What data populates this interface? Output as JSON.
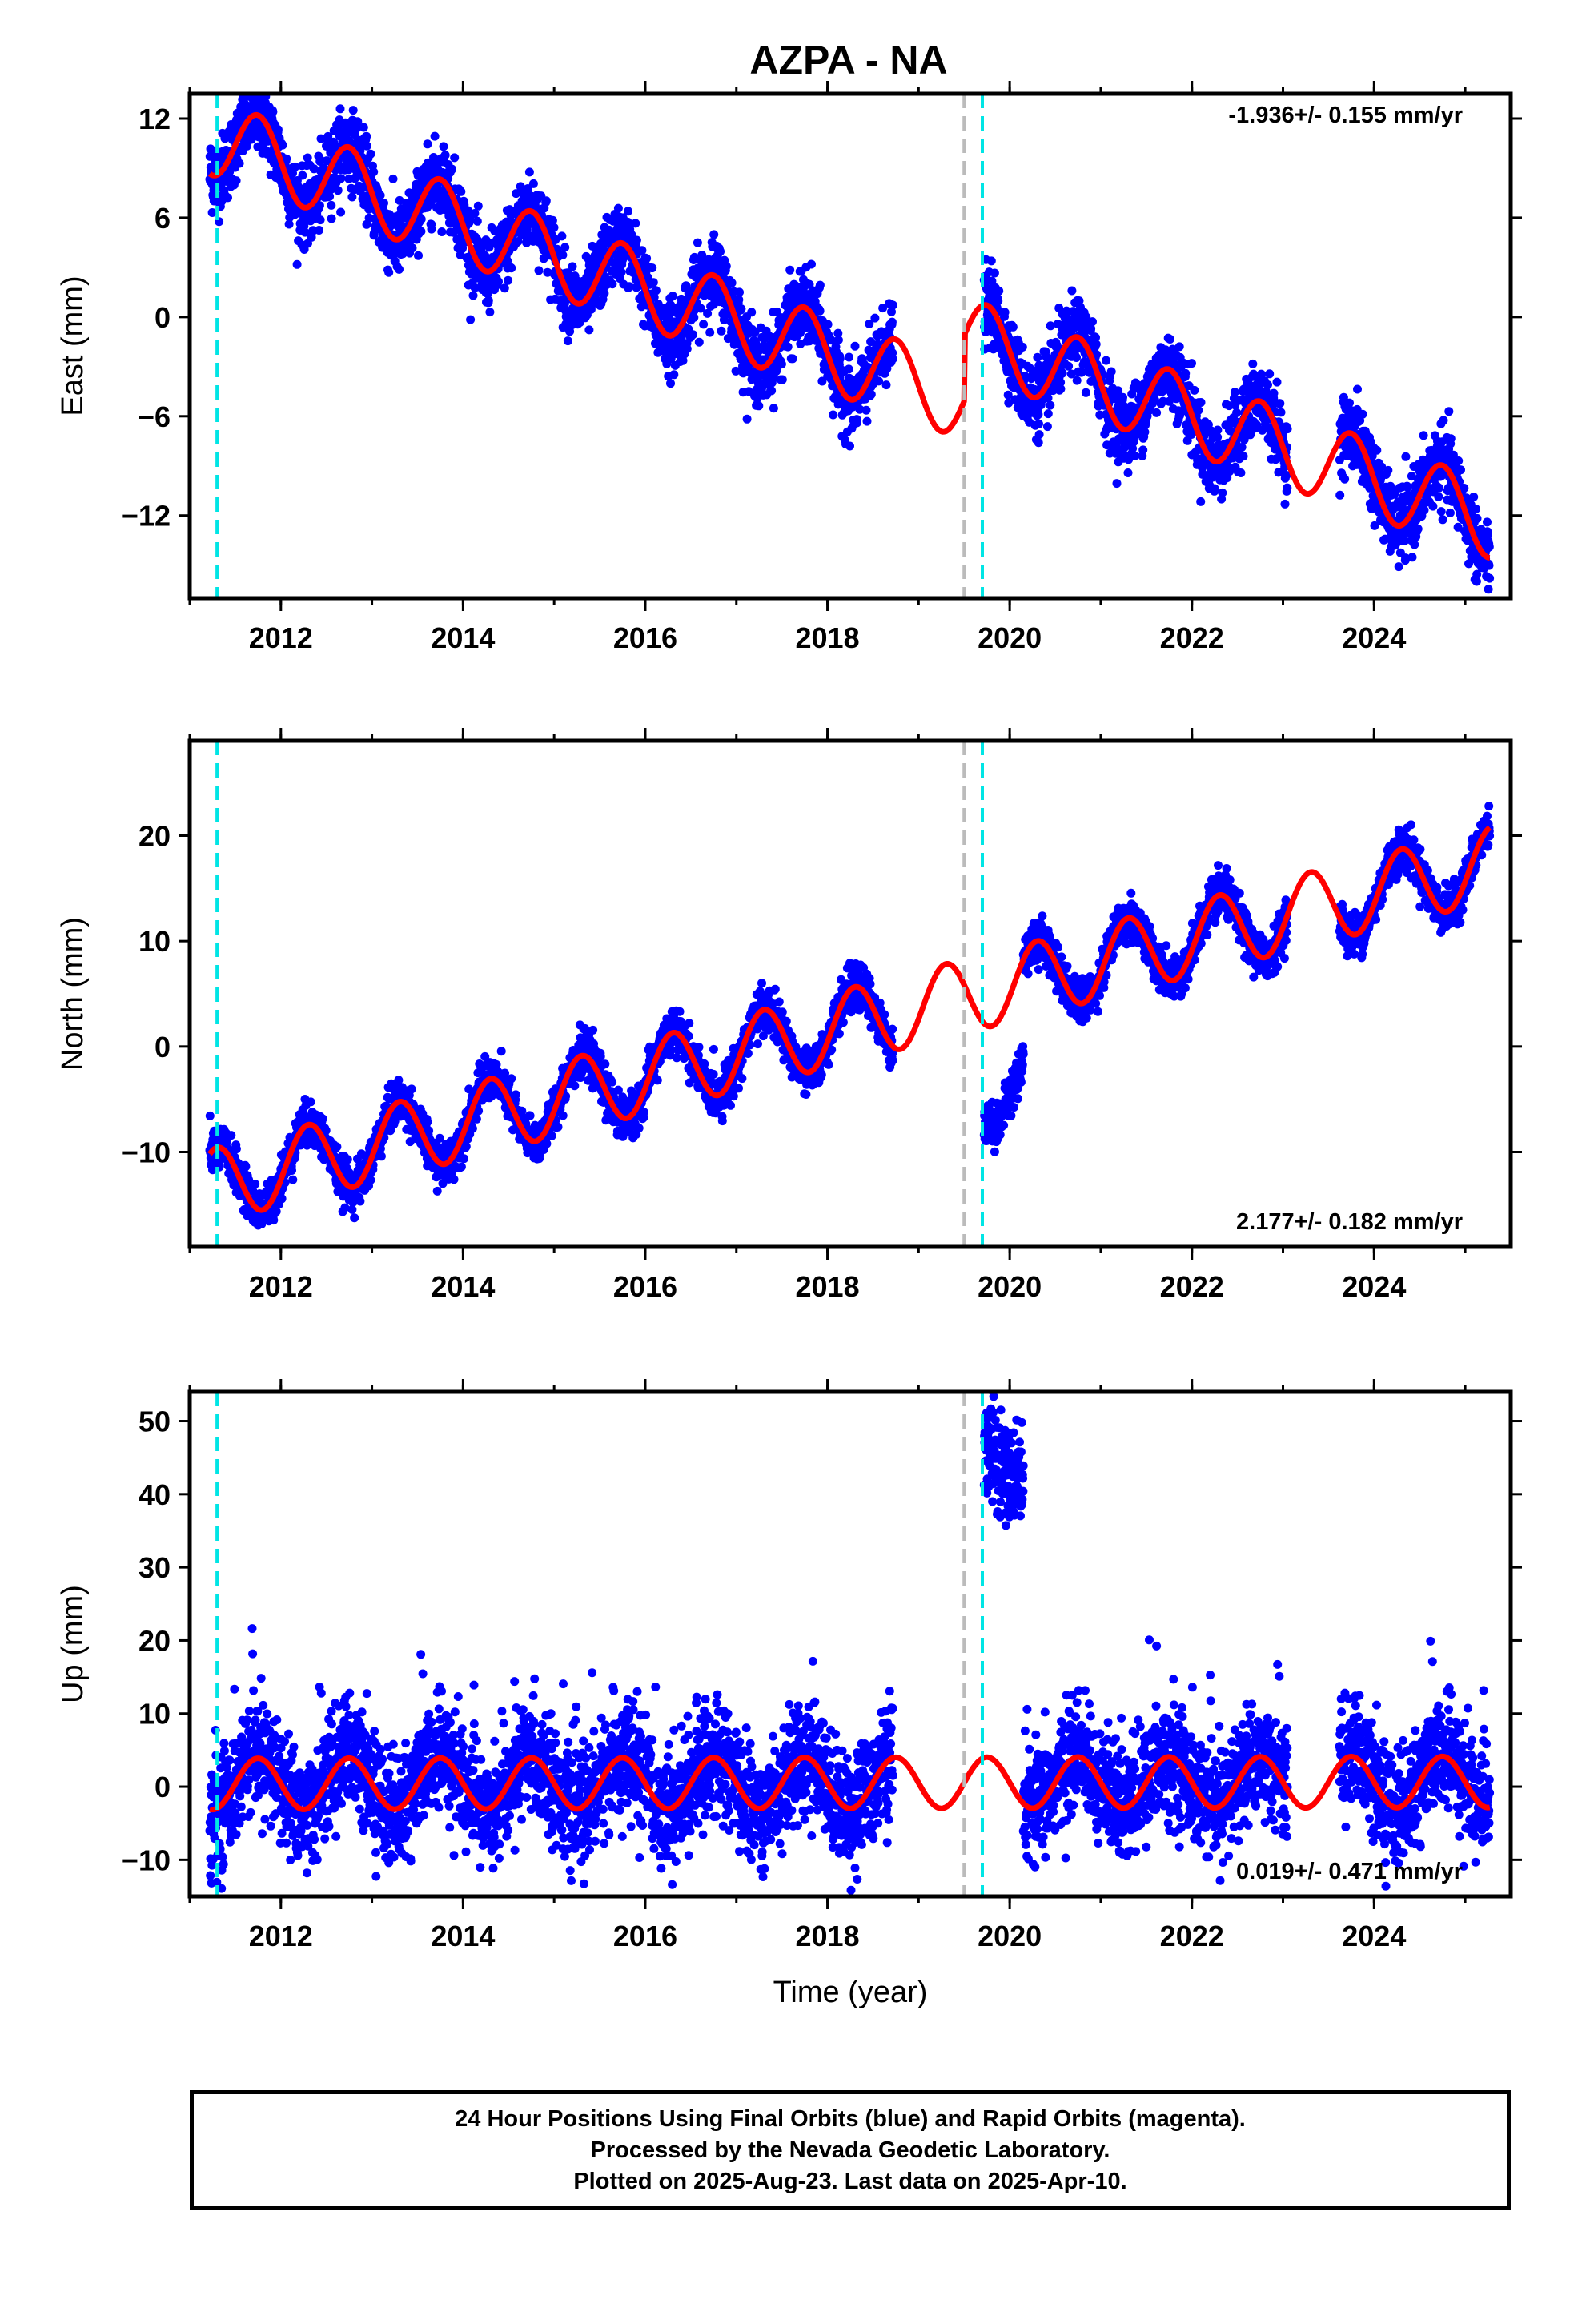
{
  "figure": {
    "title": "AZPA - NA"
  },
  "colors": {
    "data": "#0000ff",
    "model": "#ff0000",
    "offset_antenna": "#00e5e5",
    "offset_other": "#bbbbbb"
  },
  "chart_data": [
    {
      "type": "scatter",
      "title": "AZPA - NA",
      "xlabel": "",
      "ylabel": "East (mm)",
      "xlim": [
        2011.0,
        2025.5
      ],
      "ylim": [
        -17,
        13.5
      ],
      "yticks": [
        -12,
        -6,
        0,
        6,
        12
      ],
      "xticks": [
        2012,
        2014,
        2016,
        2018,
        2020,
        2022,
        2024
      ],
      "rate_label": "-1.936+/- 0.155 mm/yr",
      "rate_position": "top-right",
      "offsets": [
        {
          "x": 2011.3,
          "kind": "antenna"
        },
        {
          "x": 2019.5,
          "kind": "other"
        },
        {
          "x": 2019.7,
          "kind": "antenna"
        }
      ],
      "series": [
        {
          "role": "daily positions",
          "color": "#0000ff",
          "segments": [
            [
              2011.22,
              2018.72
            ],
            [
              2019.72,
              2023.05
            ],
            [
              2023.62,
              2025.27
            ]
          ],
          "trend": -1.936,
          "intercept_2018": -2.2,
          "seasonal_amp": 2.3,
          "seasonal_phase": 0.0,
          "noise": 1.1,
          "period_offset": 0
        },
        {
          "role": "model fit",
          "color": "#ff0000",
          "range": [
            2011.22,
            2025.27
          ],
          "trend": -1.936,
          "intercept_2018": -2.2,
          "seasonal_amp": 2.3,
          "seasonal_phase": 0.0,
          "post_2019_5_shift": 4.0
        }
      ]
    },
    {
      "type": "scatter",
      "title": "",
      "xlabel": "",
      "ylabel": "North (mm)",
      "xlim": [
        2011.0,
        2025.5
      ],
      "ylim": [
        -19,
        29
      ],
      "yticks": [
        -10,
        0,
        10,
        20
      ],
      "xticks": [
        2012,
        2014,
        2016,
        2018,
        2020,
        2022,
        2024
      ],
      "rate_label": "2.177+/- 0.182 mm/yr",
      "rate_position": "bottom-right",
      "offsets": [
        {
          "x": 2011.3,
          "kind": "antenna"
        },
        {
          "x": 2019.5,
          "kind": "other"
        },
        {
          "x": 2019.7,
          "kind": "antenna"
        }
      ],
      "series": [
        {
          "role": "daily positions",
          "color": "#0000ff",
          "segments": [
            [
              2011.22,
              2018.72
            ],
            [
              2019.72,
              2020.15
            ],
            [
              2020.15,
              2023.05
            ],
            [
              2023.62,
              2025.27
            ]
          ],
          "trend": 2.177,
          "intercept_2018": 1.5,
          "seasonal_amp": 3.5,
          "seasonal_phase": 0.45,
          "noise": 1.0,
          "segment_shift": [
            0,
            -9.5,
            0,
            0
          ]
        },
        {
          "role": "model fit",
          "color": "#ff0000",
          "range": [
            2011.22,
            2025.27
          ],
          "trend": 2.177,
          "intercept_2018": 1.5,
          "seasonal_amp": 3.5,
          "seasonal_phase": 0.45
        }
      ]
    },
    {
      "type": "scatter",
      "title": "",
      "xlabel": "Time (year)",
      "ylabel": "Up (mm)",
      "xlim": [
        2011.0,
        2025.5
      ],
      "ylim": [
        -15,
        54
      ],
      "yticks": [
        -10,
        0,
        10,
        20,
        30,
        40,
        50
      ],
      "xticks": [
        2012,
        2014,
        2016,
        2018,
        2020,
        2022,
        2024
      ],
      "rate_label": "0.019+/- 0.471 mm/yr",
      "rate_position": "bottom-right",
      "offsets": [
        {
          "x": 2011.3,
          "kind": "antenna"
        },
        {
          "x": 2019.5,
          "kind": "other"
        },
        {
          "x": 2019.7,
          "kind": "antenna"
        }
      ],
      "series": [
        {
          "role": "daily positions",
          "color": "#0000ff",
          "segments": [
            [
              2011.22,
              2018.72
            ],
            [
              2019.72,
              2020.15
            ],
            [
              2020.15,
              2023.05
            ],
            [
              2023.62,
              2025.27
            ]
          ],
          "trend": 0.019,
          "intercept_2018": 0.5,
          "seasonal_amp": 3.5,
          "seasonal_phase": 0.0,
          "noise": 3.8,
          "segment_shift": [
            0,
            42,
            0,
            0
          ]
        },
        {
          "role": "model fit",
          "color": "#ff0000",
          "range": [
            2011.22,
            2025.27
          ],
          "trend": 0.019,
          "intercept_2018": 0.5,
          "seasonal_amp": 3.5,
          "seasonal_phase": 0.0
        }
      ]
    }
  ],
  "footer": {
    "line1": "24 Hour Positions Using Final Orbits (blue) and Rapid Orbits (magenta).",
    "line2": "Processed by the Nevada Geodetic Laboratory.",
    "line3": "Plotted on 2025-Aug-23. Last data on 2025-Apr-10."
  }
}
